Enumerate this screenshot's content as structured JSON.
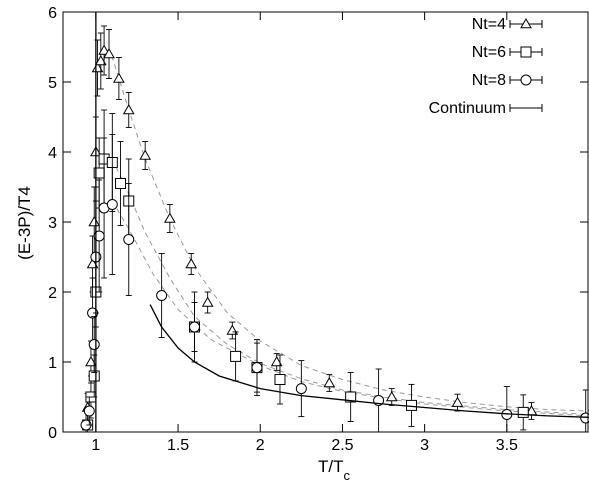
{
  "chart_data": {
    "type": "scatter",
    "xlabel": "T/T",
    "xlabel_sub": "c",
    "ylabel": "(E-3P)/T4",
    "xlim": [
      0.8,
      4.0
    ],
    "ylim": [
      0,
      6
    ],
    "xticks": [
      1,
      1.5,
      2,
      2.5,
      3,
      3.5
    ],
    "xtick_labels": [
      "1",
      "1.5",
      "2",
      "2.5",
      "3",
      "3.5"
    ],
    "yticks": [
      0,
      1,
      2,
      3,
      4,
      5,
      6
    ],
    "ytick_labels": [
      "0",
      "1",
      "2",
      "3",
      "4",
      "5",
      "6"
    ],
    "legend_position": "top-right",
    "series": [
      {
        "name": "Nt=4",
        "marker": "triangle",
        "points": [
          {
            "x": 0.95,
            "y": 0.35,
            "err": 0.2
          },
          {
            "x": 0.97,
            "y": 1.0,
            "err": 0.3
          },
          {
            "x": 0.98,
            "y": 2.4,
            "err": 0.4
          },
          {
            "x": 0.99,
            "y": 3.0,
            "err": 0.5
          },
          {
            "x": 1.0,
            "y": 4.0,
            "err": 0.5
          },
          {
            "x": 1.01,
            "y": 5.2,
            "err": 0.4
          },
          {
            "x": 1.03,
            "y": 5.3,
            "err": 0.4
          },
          {
            "x": 1.05,
            "y": 5.45,
            "err": 0.35
          },
          {
            "x": 1.08,
            "y": 5.4,
            "err": 0.35
          },
          {
            "x": 1.14,
            "y": 5.05,
            "err": 0.3
          },
          {
            "x": 1.2,
            "y": 4.6,
            "err": 0.25
          },
          {
            "x": 1.3,
            "y": 3.95,
            "err": 0.2
          },
          {
            "x": 1.45,
            "y": 3.05,
            "err": 0.2
          },
          {
            "x": 1.58,
            "y": 2.4,
            "err": 0.15
          },
          {
            "x": 1.68,
            "y": 1.85,
            "err": 0.15
          },
          {
            "x": 1.83,
            "y": 1.45,
            "err": 0.12
          },
          {
            "x": 2.1,
            "y": 1.0,
            "err": 0.12
          },
          {
            "x": 2.42,
            "y": 0.7,
            "err": 0.12
          },
          {
            "x": 2.8,
            "y": 0.5,
            "err": 0.12
          },
          {
            "x": 3.2,
            "y": 0.42,
            "err": 0.12
          },
          {
            "x": 3.65,
            "y": 0.3,
            "err": 0.12
          }
        ]
      },
      {
        "name": "Nt=6",
        "marker": "square",
        "points": [
          {
            "x": 0.95,
            "y": 0.1,
            "err": 0.25
          },
          {
            "x": 0.97,
            "y": 0.5,
            "err": 0.3
          },
          {
            "x": 0.99,
            "y": 0.8,
            "err": 0.3
          },
          {
            "x": 1.0,
            "y": 2.0,
            "err": 0.5
          },
          {
            "x": 1.02,
            "y": 3.7,
            "err": 0.5
          },
          {
            "x": 1.05,
            "y": 3.9,
            "err": 0.7
          },
          {
            "x": 1.1,
            "y": 3.85,
            "err": 0.7
          },
          {
            "x": 1.15,
            "y": 3.55,
            "err": 0.6
          },
          {
            "x": 1.2,
            "y": 3.3,
            "err": 0.6
          },
          {
            "x": 1.6,
            "y": 1.5,
            "err": 0.35
          },
          {
            "x": 1.85,
            "y": 1.08,
            "err": 0.35
          },
          {
            "x": 1.98,
            "y": 0.92,
            "err": 0.35
          },
          {
            "x": 2.12,
            "y": 0.75,
            "err": 0.35
          },
          {
            "x": 2.55,
            "y": 0.5,
            "err": 0.35
          },
          {
            "x": 2.92,
            "y": 0.38,
            "err": 0.3
          },
          {
            "x": 3.6,
            "y": 0.28,
            "err": 0.25
          }
        ]
      },
      {
        "name": "Nt=8",
        "marker": "circle",
        "points": [
          {
            "x": 0.94,
            "y": 0.1,
            "err": 0.2
          },
          {
            "x": 0.96,
            "y": 0.3,
            "err": 0.2
          },
          {
            "x": 0.98,
            "y": 1.7,
            "err": 0.5
          },
          {
            "x": 0.99,
            "y": 1.25,
            "err": 0.4
          },
          {
            "x": 1.0,
            "y": 2.5,
            "err": 0.8
          },
          {
            "x": 1.02,
            "y": 2.8,
            "err": 0.8
          },
          {
            "x": 1.05,
            "y": 3.2,
            "err": 1.0
          },
          {
            "x": 1.1,
            "y": 3.25,
            "err": 1.0
          },
          {
            "x": 1.2,
            "y": 2.75,
            "err": 0.8
          },
          {
            "x": 1.4,
            "y": 1.95,
            "err": 0.6
          },
          {
            "x": 1.6,
            "y": 1.5,
            "err": 0.5
          },
          {
            "x": 1.98,
            "y": 0.92,
            "err": 0.4
          },
          {
            "x": 2.25,
            "y": 0.62,
            "err": 0.4
          },
          {
            "x": 2.72,
            "y": 0.45,
            "err": 0.45
          },
          {
            "x": 3.5,
            "y": 0.25,
            "err": 0.4
          },
          {
            "x": 3.98,
            "y": 0.2,
            "err": 0.4
          }
        ]
      },
      {
        "name": "Continuum",
        "marker": "line",
        "points": [
          {
            "x": 1.33,
            "y": 1.82
          },
          {
            "x": 1.4,
            "y": 1.5
          },
          {
            "x": 1.5,
            "y": 1.2
          },
          {
            "x": 1.6,
            "y": 1.0
          },
          {
            "x": 1.75,
            "y": 0.8
          },
          {
            "x": 2.0,
            "y": 0.62
          },
          {
            "x": 2.25,
            "y": 0.52
          },
          {
            "x": 2.5,
            "y": 0.46
          },
          {
            "x": 2.75,
            "y": 0.4
          },
          {
            "x": 3.0,
            "y": 0.35
          },
          {
            "x": 3.25,
            "y": 0.3
          },
          {
            "x": 3.5,
            "y": 0.26
          },
          {
            "x": 3.75,
            "y": 0.23
          },
          {
            "x": 4.0,
            "y": 0.21
          }
        ]
      }
    ],
    "fit_curves": [
      {
        "style": "dashed",
        "color": "#999999",
        "points": [
          {
            "x": 1.05,
            "y": 5.45
          },
          {
            "x": 1.1,
            "y": 5.35
          },
          {
            "x": 1.2,
            "y": 4.6
          },
          {
            "x": 1.3,
            "y": 3.9
          },
          {
            "x": 1.45,
            "y": 3.05
          },
          {
            "x": 1.6,
            "y": 2.35
          },
          {
            "x": 1.8,
            "y": 1.7
          },
          {
            "x": 2.0,
            "y": 1.3
          },
          {
            "x": 2.25,
            "y": 0.95
          },
          {
            "x": 2.5,
            "y": 0.75
          },
          {
            "x": 2.75,
            "y": 0.6
          },
          {
            "x": 3.0,
            "y": 0.5
          },
          {
            "x": 3.25,
            "y": 0.42
          },
          {
            "x": 3.5,
            "y": 0.36
          },
          {
            "x": 3.75,
            "y": 0.32
          },
          {
            "x": 4.0,
            "y": 0.3
          }
        ]
      },
      {
        "style": "dashed",
        "color": "#999999",
        "points": [
          {
            "x": 1.1,
            "y": 3.9
          },
          {
            "x": 1.2,
            "y": 3.4
          },
          {
            "x": 1.3,
            "y": 2.85
          },
          {
            "x": 1.45,
            "y": 2.2
          },
          {
            "x": 1.6,
            "y": 1.65
          },
          {
            "x": 1.8,
            "y": 1.25
          },
          {
            "x": 2.0,
            "y": 0.98
          },
          {
            "x": 2.25,
            "y": 0.76
          },
          {
            "x": 2.5,
            "y": 0.6
          },
          {
            "x": 2.75,
            "y": 0.5
          },
          {
            "x": 3.0,
            "y": 0.42
          },
          {
            "x": 3.5,
            "y": 0.32
          },
          {
            "x": 4.0,
            "y": 0.25
          }
        ]
      },
      {
        "style": "dashed",
        "color": "#999999",
        "points": [
          {
            "x": 1.1,
            "y": 3.3
          },
          {
            "x": 1.2,
            "y": 2.9
          },
          {
            "x": 1.35,
            "y": 2.25
          },
          {
            "x": 1.5,
            "y": 1.75
          },
          {
            "x": 1.7,
            "y": 1.32
          },
          {
            "x": 2.0,
            "y": 0.95
          },
          {
            "x": 2.25,
            "y": 0.72
          },
          {
            "x": 2.5,
            "y": 0.58
          },
          {
            "x": 2.75,
            "y": 0.48
          },
          {
            "x": 3.0,
            "y": 0.4
          },
          {
            "x": 3.5,
            "y": 0.3
          },
          {
            "x": 4.0,
            "y": 0.23
          }
        ]
      }
    ]
  }
}
